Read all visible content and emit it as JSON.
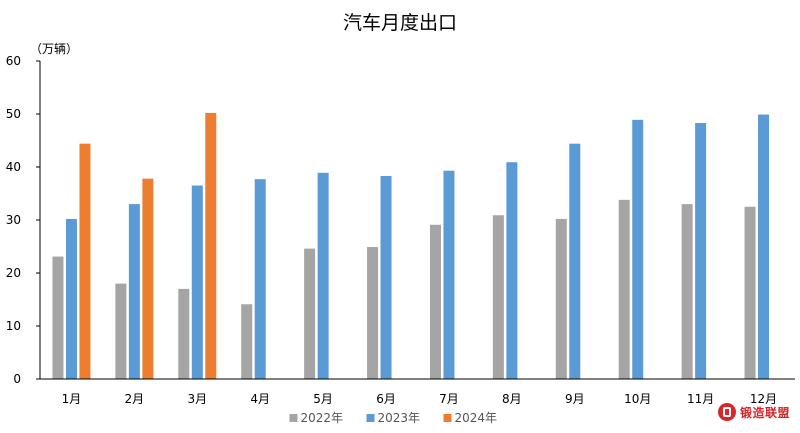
{
  "chart_data": {
    "type": "bar",
    "title": "汽车月度出口",
    "ylabel": "（万辆）",
    "xlabel": "",
    "ylim": [
      0,
      60
    ],
    "yticks": [
      0,
      10,
      20,
      30,
      40,
      50,
      60
    ],
    "grid": false,
    "legend_position": "bottom",
    "categories": [
      "1月",
      "2月",
      "3月",
      "4月",
      "5月",
      "6月",
      "7月",
      "8月",
      "9月",
      "10月",
      "11月",
      "12月"
    ],
    "series": [
      {
        "name": "2022年",
        "color": "#a5a5a5",
        "values": [
          23.1,
          18.0,
          17.0,
          14.1,
          24.6,
          24.9,
          29.1,
          30.9,
          30.2,
          33.8,
          33.0,
          32.5
        ]
      },
      {
        "name": "2023年",
        "color": "#5b9bd5",
        "values": [
          30.2,
          33.0,
          36.5,
          37.7,
          38.9,
          38.3,
          39.3,
          40.9,
          44.4,
          48.9,
          48.3,
          49.9
        ]
      },
      {
        "name": "2024年",
        "color": "#ed7d31",
        "values": [
          44.4,
          37.8,
          50.2,
          null,
          null,
          null,
          null,
          null,
          null,
          null,
          null,
          null
        ]
      }
    ]
  },
  "watermark": {
    "text": "锻造联盟",
    "icon": "logo-icon"
  }
}
